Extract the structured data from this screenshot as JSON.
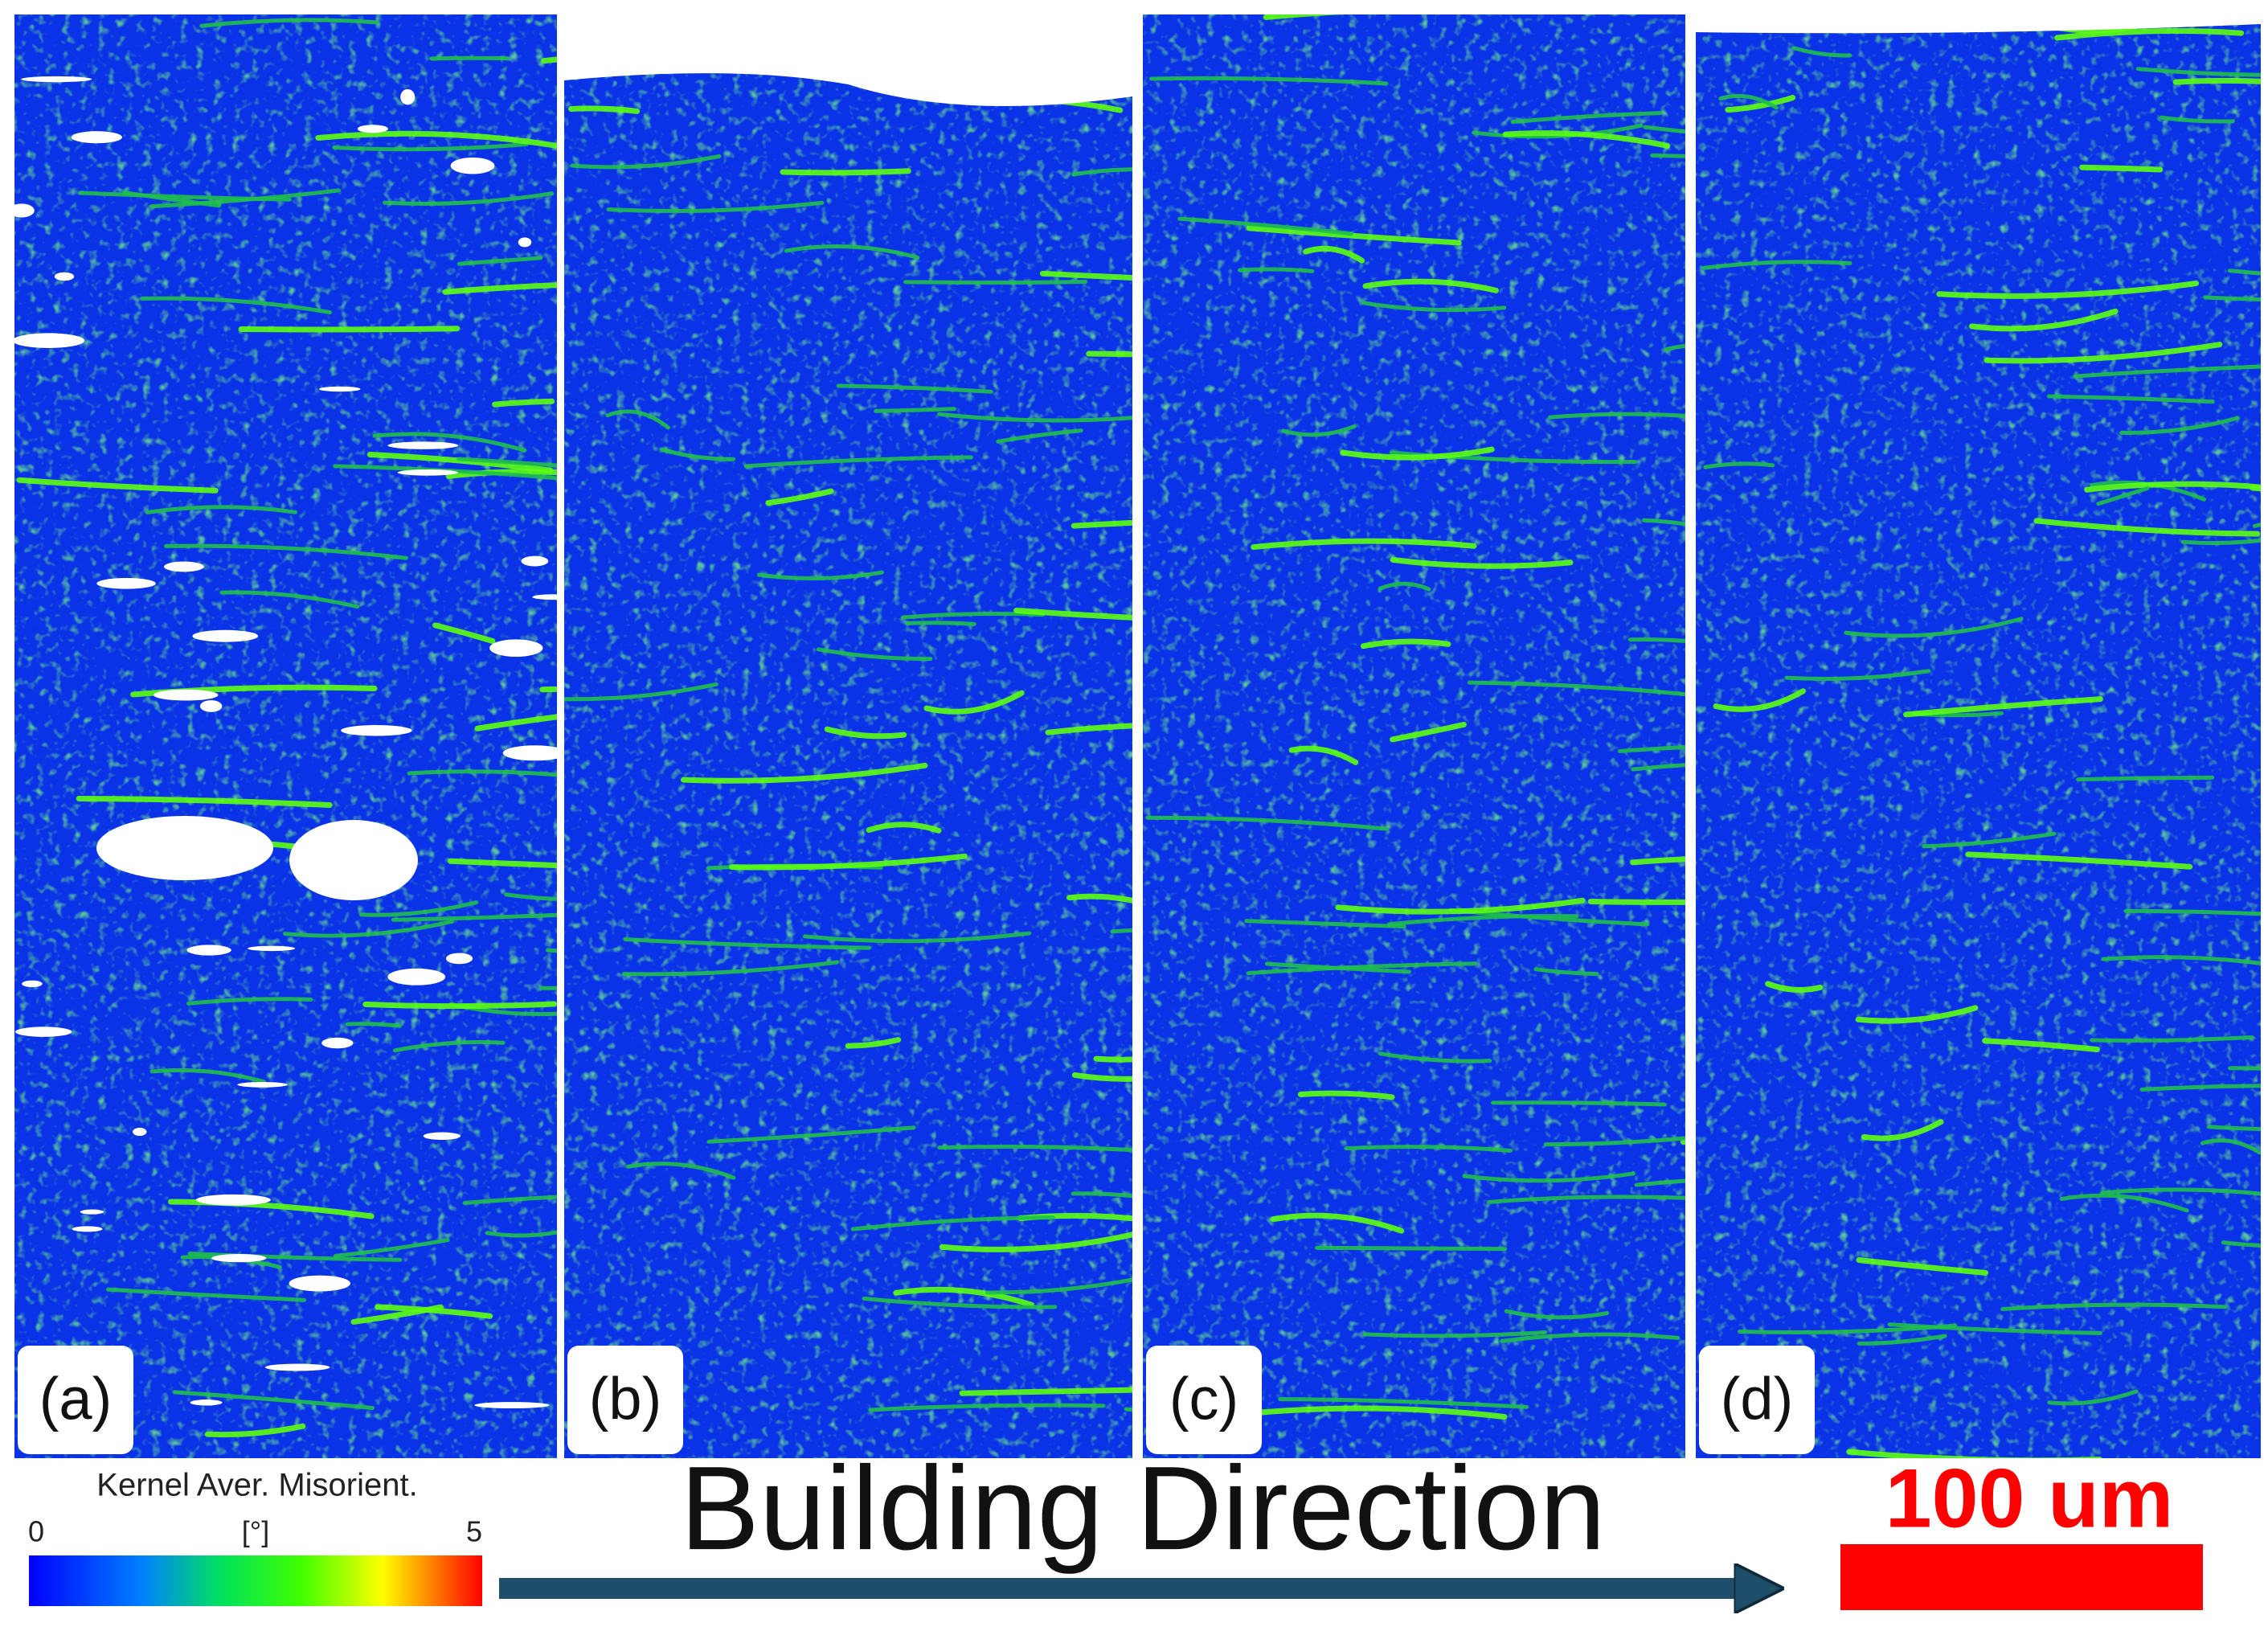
{
  "panels": [
    {
      "label": "(a)"
    },
    {
      "label": "(b)"
    },
    {
      "label": "(c)"
    },
    {
      "label": "(d)"
    }
  ],
  "colorbar": {
    "title": "Kernel Aver. Misorient.",
    "min": 0,
    "unit": "[°]",
    "max": 5
  },
  "arrow_label": "Building Direction",
  "scale_bar": {
    "label": "100 um"
  }
}
